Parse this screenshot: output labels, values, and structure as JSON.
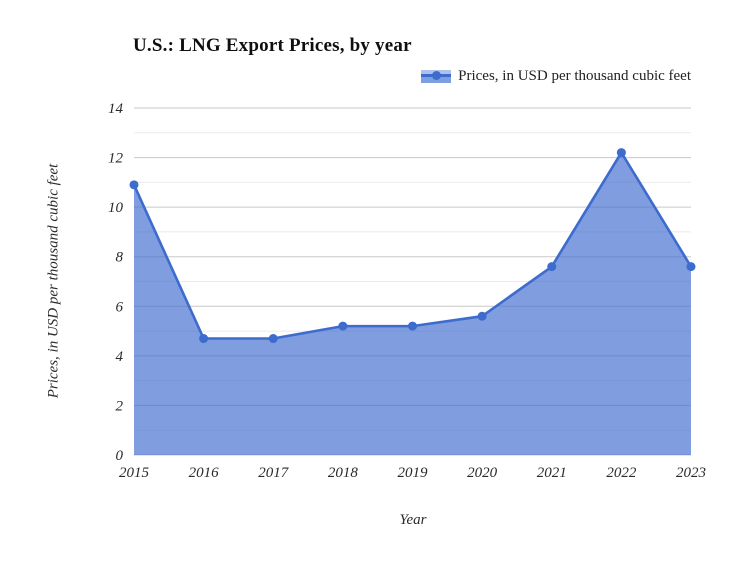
{
  "chart": {
    "title": "U.S.: LNG Export Prices, by year",
    "legend": {
      "label": "Prices, in USD per thousand cubic feet"
    },
    "x_axis_title": "Year",
    "y_axis_title": "Prices, in USD per thousand cubic feet"
  },
  "chart_data": {
    "type": "area",
    "title": "U.S.: LNG Export Prices, by year",
    "xlabel": "Year",
    "ylabel": "Prices, in USD per thousand cubic feet",
    "categories": [
      "2015",
      "2016",
      "2017",
      "2018",
      "2019",
      "2020",
      "2021",
      "2022",
      "2023"
    ],
    "series": [
      {
        "name": "Prices, in USD per thousand cubic feet",
        "values": [
          10.9,
          4.7,
          4.7,
          5.2,
          5.2,
          5.6,
          7.6,
          12.2,
          7.6
        ]
      }
    ],
    "ylim": [
      0,
      14
    ],
    "y_major_ticks": [
      0,
      2,
      4,
      6,
      8,
      10,
      12,
      14
    ],
    "y_minor_tick_step": 1,
    "grid": "horizontal",
    "legend_position": "top-right",
    "markers": true,
    "colors": {
      "line": "#3d6bce",
      "marker": "#3d6bce",
      "area_fill": "rgba(61,107,206,0.66)",
      "area_fill_light": "rgba(61,107,206,0.42)",
      "major_grid": "#c9c9c9",
      "minor_grid": "#ebebeb",
      "tick_text": "#2b2b2b",
      "title_text": "#0f0f0f"
    }
  }
}
